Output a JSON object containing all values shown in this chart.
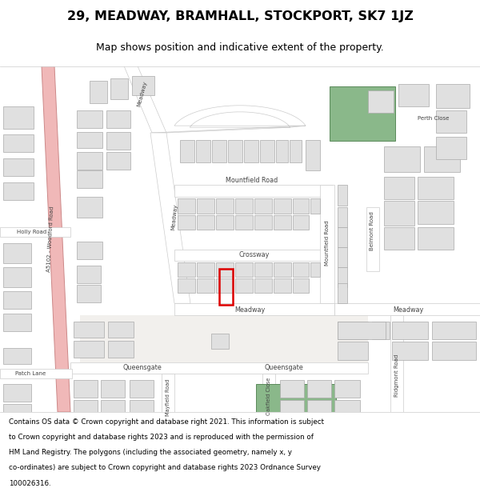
{
  "title": "29, MEADWAY, BRAMHALL, STOCKPORT, SK7 1JZ",
  "subtitle": "Map shows position and indicative extent of the property.",
  "footer": "Contains OS data © Crown copyright and database right 2021. This information is subject to Crown copyright and database rights 2023 and is reproduced with the permission of HM Land Registry. The polygons (including the associated geometry, namely x, y co-ordinates) are subject to Crown copyright and database rights 2023 Ordnance Survey 100026316.",
  "title_fontsize": 11.5,
  "subtitle_fontsize": 9.0,
  "footer_fontsize": 6.3,
  "map_bg": "#f2f0ed",
  "page_bg": "#ffffff",
  "building_fill": "#e0e0e0",
  "building_edge": "#aaaaaa",
  "road_fill": "#ffffff",
  "road_edge": "#cccccc",
  "highlight_edge": "#dd0000",
  "highlight_lw": 1.8,
  "green_fill": "#8ab88a",
  "green_edge": "#5a8a5a",
  "pink_fill": "#f0b8b8",
  "pink_edge": "#cc8888",
  "label_color": "#444444",
  "road_label_size": 5.8,
  "small_label_size": 5.0
}
